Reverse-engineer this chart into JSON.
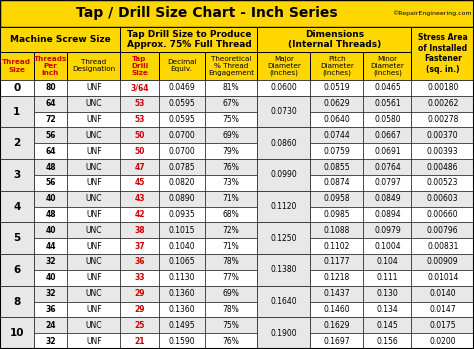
{
  "title": "Tap / Drill Size Chart - Inch Series",
  "watermark": "©RepairEngineering.com",
  "YELLOW": "#FFD700",
  "WHITE": "#FFFFFF",
  "LIGHT_GRAY": "#E8E8E8",
  "BLACK": "#000000",
  "RED": "#CC0000",
  "rows": [
    {
      "thread": "0",
      "tpi": "80",
      "desig": "UNF",
      "drill": "3/64",
      "decimal": "0.0469",
      "pct": "81%",
      "major": "0.0600",
      "pitch": "0.0519",
      "minor": "0.0465",
      "stress": "0.00180"
    },
    {
      "thread": "1",
      "tpi": "64",
      "desig": "UNC",
      "drill": "53",
      "decimal": "0.0595",
      "pct": "67%",
      "major": "0.0730",
      "pitch": "0.0629",
      "minor": "0.0561",
      "stress": "0.00262"
    },
    {
      "thread": "1",
      "tpi": "72",
      "desig": "UNF",
      "drill": "53",
      "decimal": "0.0595",
      "pct": "75%",
      "major": "",
      "pitch": "0.0640",
      "minor": "0.0580",
      "stress": "0.00278"
    },
    {
      "thread": "2",
      "tpi": "56",
      "desig": "UNC",
      "drill": "50",
      "decimal": "0.0700",
      "pct": "69%",
      "major": "0.0860",
      "pitch": "0.0744",
      "minor": "0.0667",
      "stress": "0.00370"
    },
    {
      "thread": "2",
      "tpi": "64",
      "desig": "UNF",
      "drill": "50",
      "decimal": "0.0700",
      "pct": "79%",
      "major": "",
      "pitch": "0.0759",
      "minor": "0.0691",
      "stress": "0.00393"
    },
    {
      "thread": "3",
      "tpi": "48",
      "desig": "UNC",
      "drill": "47",
      "decimal": "0.0785",
      "pct": "76%",
      "major": "0.0990",
      "pitch": "0.0855",
      "minor": "0.0764",
      "stress": "0.00486"
    },
    {
      "thread": "3",
      "tpi": "56",
      "desig": "UNF",
      "drill": "45",
      "decimal": "0.0820",
      "pct": "73%",
      "major": "",
      "pitch": "0.0874",
      "minor": "0.0797",
      "stress": "0.00523"
    },
    {
      "thread": "4",
      "tpi": "40",
      "desig": "UNC",
      "drill": "43",
      "decimal": "0.0890",
      "pct": "71%",
      "major": "0.1120",
      "pitch": "0.0958",
      "minor": "0.0849",
      "stress": "0.00603"
    },
    {
      "thread": "4",
      "tpi": "48",
      "desig": "UNF",
      "drill": "42",
      "decimal": "0.0935",
      "pct": "68%",
      "major": "",
      "pitch": "0.0985",
      "minor": "0.0894",
      "stress": "0.00660"
    },
    {
      "thread": "5",
      "tpi": "40",
      "desig": "UNC",
      "drill": "38",
      "decimal": "0.1015",
      "pct": "72%",
      "major": "0.1250",
      "pitch": "0.1088",
      "minor": "0.0979",
      "stress": "0.00796"
    },
    {
      "thread": "5",
      "tpi": "44",
      "desig": "UNF",
      "drill": "37",
      "decimal": "0.1040",
      "pct": "71%",
      "major": "",
      "pitch": "0.1102",
      "minor": "0.1004",
      "stress": "0.00831"
    },
    {
      "thread": "6",
      "tpi": "32",
      "desig": "UNC",
      "drill": "36",
      "decimal": "0.1065",
      "pct": "78%",
      "major": "0.1380",
      "pitch": "0.1177",
      "minor": "0.104",
      "stress": "0.00909"
    },
    {
      "thread": "6",
      "tpi": "40",
      "desig": "UNF",
      "drill": "33",
      "decimal": "0.1130",
      "pct": "77%",
      "major": "",
      "pitch": "0.1218",
      "minor": "0.111",
      "stress": "0.01014"
    },
    {
      "thread": "8",
      "tpi": "32",
      "desig": "UNC",
      "drill": "29",
      "decimal": "0.1360",
      "pct": "69%",
      "major": "0.1640",
      "pitch": "0.1437",
      "minor": "0.130",
      "stress": "0.0140"
    },
    {
      "thread": "8",
      "tpi": "36",
      "desig": "UNF",
      "drill": "29",
      "decimal": "0.1360",
      "pct": "78%",
      "major": "",
      "pitch": "0.1460",
      "minor": "0.134",
      "stress": "0.0147"
    },
    {
      "thread": "10",
      "tpi": "24",
      "desig": "UNC",
      "drill": "25",
      "decimal": "0.1495",
      "pct": "75%",
      "major": "0.1900",
      "pitch": "0.1629",
      "minor": "0.145",
      "stress": "0.0175"
    },
    {
      "thread": "10",
      "tpi": "32",
      "desig": "UNF",
      "drill": "21",
      "decimal": "0.1590",
      "pct": "76%",
      "major": "",
      "pitch": "0.1697",
      "minor": "0.156",
      "stress": "0.0200"
    }
  ]
}
